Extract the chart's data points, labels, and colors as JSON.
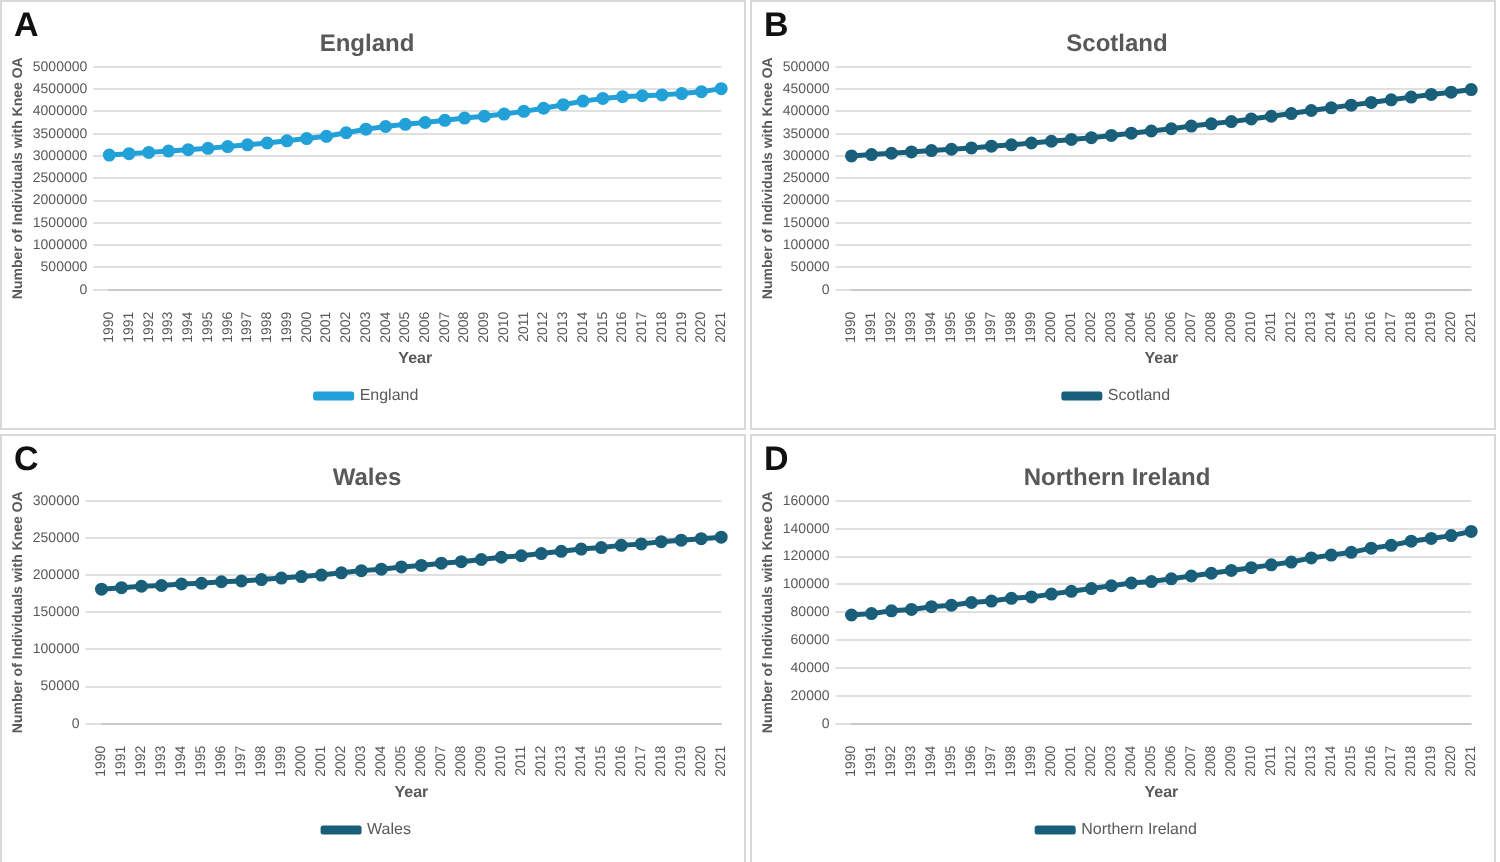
{
  "chart_data": [
    {
      "type": "line",
      "title": "England",
      "xlabel": "Year",
      "ylabel": "Number of Individuals with Knee OA",
      "annotations": [
        "A"
      ],
      "categories": [
        "1990",
        "1991",
        "1992",
        "1993",
        "1994",
        "1995",
        "1996",
        "1997",
        "1998",
        "1999",
        "2000",
        "2001",
        "2002",
        "2003",
        "2004",
        "2005",
        "2006",
        "2007",
        "2008",
        "2009",
        "2010",
        "2011",
        "2012",
        "2013",
        "2014",
        "2015",
        "2016",
        "2017",
        "2018",
        "2019",
        "2020",
        "2021"
      ],
      "series": [
        {
          "name": "England",
          "color": "#22a0d8",
          "values": [
            3020000,
            3050000,
            3080000,
            3110000,
            3140000,
            3170000,
            3210000,
            3250000,
            3290000,
            3340000,
            3390000,
            3440000,
            3520000,
            3600000,
            3660000,
            3710000,
            3750000,
            3800000,
            3850000,
            3890000,
            3940000,
            4000000,
            4070000,
            4150000,
            4230000,
            4290000,
            4330000,
            4350000,
            4370000,
            4400000,
            4440000,
            4510000
          ]
        }
      ],
      "ylim": [
        0,
        5000000
      ],
      "yticks": [
        0,
        500000,
        1000000,
        1500000,
        2000000,
        2500000,
        3000000,
        3500000,
        4000000,
        4500000,
        5000000
      ],
      "grid": "y",
      "legend": "bottom",
      "marker": "circle"
    },
    {
      "type": "line",
      "title": "Scotland",
      "xlabel": "Year",
      "ylabel": "Number of Individuals with Knee OA",
      "annotations": [
        "B"
      ],
      "categories": [
        "1990",
        "1991",
        "1992",
        "1993",
        "1994",
        "1995",
        "1996",
        "1997",
        "1998",
        "1999",
        "2000",
        "2001",
        "2002",
        "2003",
        "2004",
        "2005",
        "2006",
        "2007",
        "2008",
        "2009",
        "2010",
        "2011",
        "2012",
        "2013",
        "2014",
        "2015",
        "2016",
        "2017",
        "2018",
        "2019",
        "2020",
        "2021"
      ],
      "series": [
        {
          "name": "Scotland",
          "color": "#1a5f7a",
          "values": [
            300000,
            303000,
            306000,
            309000,
            312000,
            315000,
            318000,
            322000,
            325000,
            329000,
            333000,
            337000,
            341000,
            346000,
            351000,
            356000,
            361000,
            367000,
            372000,
            377000,
            383000,
            389000,
            395000,
            402000,
            408000,
            414000,
            420000,
            426000,
            432000,
            438000,
            443000,
            449000
          ]
        }
      ],
      "ylim": [
        0,
        500000
      ],
      "yticks": [
        0,
        50000,
        100000,
        150000,
        200000,
        250000,
        300000,
        350000,
        400000,
        450000,
        500000
      ],
      "grid": "y",
      "legend": "bottom",
      "marker": "circle"
    },
    {
      "type": "line",
      "title": "Wales",
      "xlabel": "Year",
      "ylabel": "Number of Individuals with Knee OA",
      "annotations": [
        "C"
      ],
      "categories": [
        "1990",
        "1991",
        "1992",
        "1993",
        "1994",
        "1995",
        "1996",
        "1997",
        "1998",
        "1999",
        "2000",
        "2001",
        "2002",
        "2003",
        "2004",
        "2005",
        "2006",
        "2007",
        "2008",
        "2009",
        "2010",
        "2011",
        "2012",
        "2013",
        "2014",
        "2015",
        "2016",
        "2017",
        "2018",
        "2019",
        "2020",
        "2021"
      ],
      "series": [
        {
          "name": "Wales",
          "color": "#1a5f7a",
          "values": [
            181000,
            183000,
            185000,
            186000,
            188000,
            189000,
            191000,
            192000,
            194000,
            196000,
            198000,
            200000,
            203000,
            206000,
            208000,
            211000,
            213000,
            216000,
            218000,
            221000,
            224000,
            226000,
            229000,
            232000,
            235000,
            237000,
            240000,
            242000,
            245000,
            247000,
            249000,
            251000
          ]
        }
      ],
      "ylim": [
        0,
        300000
      ],
      "yticks": [
        0,
        50000,
        100000,
        150000,
        200000,
        250000,
        300000
      ],
      "grid": "y",
      "legend": "bottom",
      "marker": "circle"
    },
    {
      "type": "line",
      "title": "Northern Ireland",
      "xlabel": "Year",
      "ylabel": "Number of Individuals with Knee OA",
      "annotations": [
        "D"
      ],
      "categories": [
        "1990",
        "1991",
        "1992",
        "1993",
        "1994",
        "1995",
        "1996",
        "1997",
        "1998",
        "1999",
        "2000",
        "2001",
        "2002",
        "2003",
        "2004",
        "2005",
        "2006",
        "2007",
        "2008",
        "2009",
        "2010",
        "2011",
        "2012",
        "2013",
        "2014",
        "2015",
        "2016",
        "2017",
        "2018",
        "2019",
        "2020",
        "2021"
      ],
      "series": [
        {
          "name": "Northern Ireland",
          "color": "#1a5f7a",
          "values": [
            78000,
            79000,
            81000,
            82000,
            84000,
            85000,
            87000,
            88000,
            90000,
            91000,
            93000,
            95000,
            97000,
            99000,
            101000,
            102000,
            104000,
            106000,
            108000,
            110000,
            112000,
            114000,
            116000,
            119000,
            121000,
            123000,
            126000,
            128000,
            131000,
            133000,
            135000,
            138000
          ]
        }
      ],
      "ylim": [
        0,
        160000
      ],
      "yticks": [
        0,
        20000,
        40000,
        60000,
        80000,
        100000,
        120000,
        140000,
        160000
      ],
      "grid": "y",
      "legend": "bottom",
      "marker": "circle"
    }
  ]
}
